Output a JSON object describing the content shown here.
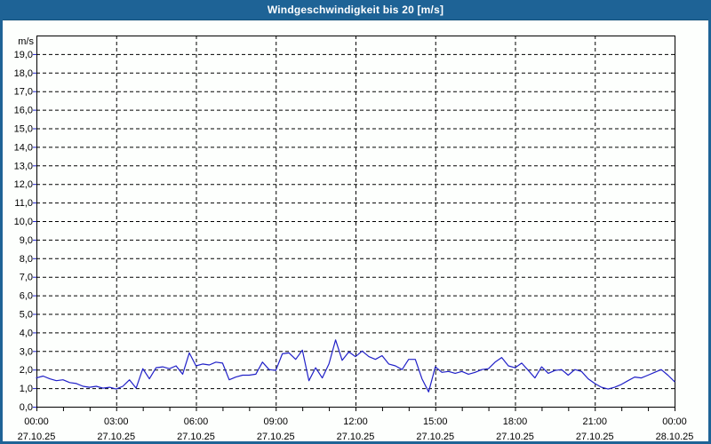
{
  "window": {
    "title": "Windgeschwindigkeit bis 20 [m/s]"
  },
  "colors": {
    "frame_blue": "#1E6396",
    "title_text": "#FFFFFF",
    "plot_background": "#FDFFFD",
    "grid_black": "#000000",
    "series_line_blue": "#2020C8",
    "axis_text": "#000000"
  },
  "chart_data": {
    "type": "line",
    "title": "Windgeschwindigkeit bis 20 [m/s]",
    "unit_label": "m/s",
    "ylabel": "m/s",
    "ylim": [
      0,
      20
    ],
    "y_tick_step": 1.0,
    "y_tick_labels": [
      "0,0",
      "1,0",
      "2,0",
      "3,0",
      "4,0",
      "5,0",
      "6,0",
      "7,0",
      "8,0",
      "9,0",
      "10,0",
      "11,0",
      "12,0",
      "13,0",
      "14,0",
      "15,0",
      "16,0",
      "17,0",
      "18,0",
      "19,0"
    ],
    "x_range_hours": [
      0,
      24
    ],
    "x_minor_tick_every_hours": 1,
    "x_major_ticks": [
      {
        "hour": 0,
        "time": "00:00",
        "date": "27.10.25"
      },
      {
        "hour": 3,
        "time": "03:00",
        "date": "27.10.25"
      },
      {
        "hour": 6,
        "time": "06:00",
        "date": "27.10.25"
      },
      {
        "hour": 9,
        "time": "09:00",
        "date": "27.10.25"
      },
      {
        "hour": 12,
        "time": "12:00",
        "date": "27.10.25"
      },
      {
        "hour": 15,
        "time": "15:00",
        "date": "27.10.25"
      },
      {
        "hour": 18,
        "time": "18:00",
        "date": "27.10.25"
      },
      {
        "hour": 21,
        "time": "21:00",
        "date": "27.10.25"
      },
      {
        "hour": 24,
        "time": "00:00",
        "date": "28.10.25"
      }
    ],
    "grid": "dashed-both-axes",
    "legend": "none",
    "sample_interval_minutes": 15,
    "series": [
      {
        "values": [
          1.55,
          1.65,
          1.5,
          1.4,
          1.45,
          1.3,
          1.25,
          1.1,
          1.05,
          1.1,
          1.0,
          1.05,
          0.95,
          1.1,
          1.45,
          1.0,
          2.05,
          1.5,
          2.1,
          2.15,
          2.05,
          2.2,
          1.75,
          2.9,
          2.2,
          2.3,
          2.25,
          2.4,
          2.35,
          1.45,
          1.6,
          1.7,
          1.7,
          1.75,
          2.4,
          2.0,
          1.95,
          2.85,
          2.9,
          2.55,
          3.05,
          1.4,
          2.1,
          1.55,
          2.3,
          3.6,
          2.5,
          2.95,
          2.7,
          3.0,
          2.7,
          2.55,
          2.75,
          2.3,
          2.2,
          2.0,
          2.55,
          2.55,
          1.5,
          0.8,
          2.15,
          1.85,
          1.9,
          1.8,
          1.9,
          1.75,
          1.85,
          2.0,
          2.05,
          2.4,
          2.65,
          2.2,
          2.1,
          2.35,
          1.95,
          1.55,
          2.15,
          1.8,
          1.95,
          2.0,
          1.7,
          2.0,
          1.9,
          1.5,
          1.25,
          1.05,
          0.95,
          1.05,
          1.2,
          1.4,
          1.6,
          1.55,
          1.7,
          1.85,
          2.0,
          1.7,
          1.35
        ]
      }
    ]
  }
}
